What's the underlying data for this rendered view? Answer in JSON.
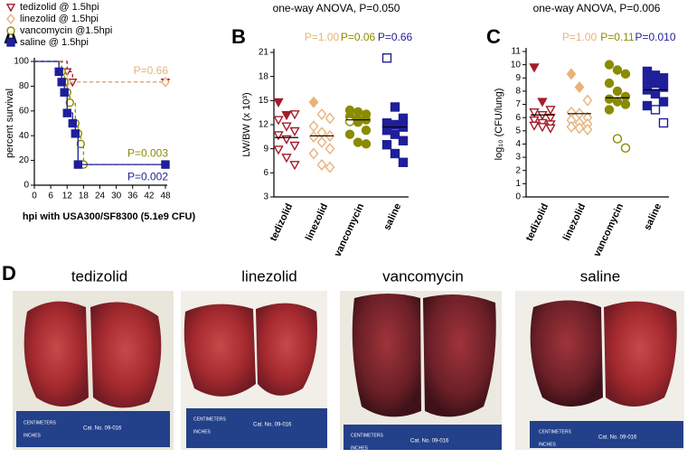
{
  "panels": {
    "a": "A",
    "b": "B",
    "c": "C",
    "d": "D"
  },
  "chart_data": [
    {
      "type": "step",
      "xlabel": "hpi with USA300/SF8300 (5.1e9 CFU)",
      "ylabel": "percent survival",
      "xlim": [
        0,
        48
      ],
      "xticks": [
        0,
        6,
        12,
        18,
        24,
        30,
        36,
        42,
        48
      ],
      "ylim": [
        0,
        100
      ],
      "yticks": [
        0,
        20,
        40,
        60,
        80,
        100
      ],
      "legend": "top-left",
      "series": [
        {
          "name": "tedizolid @ 1.5hpi",
          "color": "#a31c2b",
          "marker": "tri-down",
          "filled": false,
          "dashed": true,
          "x": [
            0,
            12,
            14,
            48
          ],
          "values": [
            100,
            91.7,
            83.3,
            83.3
          ]
        },
        {
          "name": "linezolid @ 1.5hpi",
          "color": "#eab27a",
          "marker": "diamond",
          "filled": false,
          "dashed": true,
          "x": [
            0,
            10,
            12,
            48
          ],
          "values": [
            100,
            91.7,
            83.3,
            83.3
          ],
          "annotation": "P=0.66",
          "annotation_side": "above"
        },
        {
          "name": "vancomycin @1.5hpi",
          "color": "#8b8b00",
          "marker": "circle",
          "filled": false,
          "dashed": true,
          "x": [
            0,
            10,
            11,
            12,
            13,
            15,
            16,
            17,
            18,
            48
          ],
          "values": [
            100,
            91.7,
            83.3,
            75,
            66.7,
            50,
            41.7,
            33.3,
            16.7,
            16.7
          ],
          "annotation": "P=0.003",
          "annotation_side": "above"
        },
        {
          "name": "saline @ 1.5hpi",
          "color": "#1f1f99",
          "marker": "square",
          "filled": true,
          "dashed": false,
          "x": [
            0,
            9,
            10,
            11,
            12,
            14,
            15,
            16,
            48
          ],
          "values": [
            100,
            91.7,
            83.3,
            75,
            58.3,
            50,
            41.7,
            16.7,
            16.7
          ],
          "annotation": "P=0.002",
          "annotation_side": "below"
        }
      ]
    },
    {
      "type": "dot",
      "title": "one-way ANOVA, P=0.050",
      "ylabel": "LW/BW (x 10³)",
      "ylim": [
        3,
        21
      ],
      "yticks": [
        3,
        6,
        9,
        12,
        15,
        18,
        21
      ],
      "categories": [
        "tedizolid",
        "linezolid",
        "vancomycin",
        "saline"
      ],
      "groups": [
        {
          "color": "#a31c2b",
          "marker": "tri-down",
          "mean": 10.4,
          "p_label": null,
          "values": [
            14.8,
            13.2,
            13.3,
            12.6,
            11.8,
            11.2,
            10.7,
            10.2,
            9.4,
            8.9,
            7.9,
            7.0
          ],
          "filled": [
            true,
            true,
            false,
            false,
            false,
            false,
            false,
            false,
            false,
            false,
            false,
            false
          ]
        },
        {
          "color": "#eab27a",
          "marker": "diamond",
          "mean": 10.6,
          "p_label": "P=1.00",
          "values": [
            14.8,
            13.3,
            12.8,
            11.8,
            11.0,
            10.6,
            10.5,
            9.8,
            9.0,
            8.4,
            7.0,
            6.7
          ],
          "filled": [
            true,
            false,
            false,
            false,
            false,
            false,
            false,
            false,
            false,
            false,
            false,
            false
          ]
        },
        {
          "color": "#8b8b00",
          "marker": "circle",
          "mean": 12.6,
          "p_label": "P=0.06",
          "values": [
            13.8,
            13.6,
            13.3,
            13.0,
            12.7,
            12.6,
            12.4,
            12.3,
            11.3,
            10.8,
            9.8,
            9.6
          ],
          "filled": [
            true,
            true,
            true,
            true,
            true,
            true,
            false,
            true,
            true,
            true,
            true,
            true
          ]
        },
        {
          "color": "#1f1f99",
          "marker": "square",
          "mean": 11.7,
          "p_label": "P=0.66",
          "values": [
            20.3,
            14.2,
            12.8,
            12.2,
            12.0,
            11.7,
            11.3,
            10.8,
            10.0,
            9.5,
            8.4,
            7.3
          ],
          "filled": [
            false,
            true,
            true,
            true,
            true,
            true,
            true,
            true,
            true,
            true,
            true,
            true
          ]
        }
      ]
    },
    {
      "type": "dot",
      "title": "one-way ANOVA, P=0.006",
      "ylabel": "log₁₀ (CFU/lung)",
      "ylim": [
        0,
        11
      ],
      "yticks": [
        0,
        1,
        2,
        3,
        4,
        5,
        6,
        7,
        8,
        9,
        10,
        11
      ],
      "categories": [
        "tedizolid",
        "linezolid",
        "vancomycin",
        "saline"
      ],
      "groups": [
        {
          "color": "#a31c2b",
          "marker": "tri-down",
          "mean": 6.2,
          "p_label": null,
          "values": [
            9.8,
            7.2,
            6.6,
            6.4,
            6.2,
            6.0,
            5.8,
            5.6,
            5.5,
            5.4,
            5.3,
            5.2
          ],
          "filled": [
            true,
            true,
            false,
            false,
            false,
            false,
            false,
            false,
            false,
            false,
            false,
            false
          ]
        },
        {
          "color": "#eab27a",
          "marker": "diamond",
          "mean": 6.3,
          "p_label": "P=1.00",
          "values": [
            9.3,
            8.3,
            7.3,
            6.4,
            6.3,
            6.0,
            5.8,
            5.6,
            5.5,
            5.3,
            5.2,
            5.1
          ],
          "filled": [
            true,
            true,
            false,
            false,
            false,
            false,
            false,
            false,
            false,
            false,
            false,
            false
          ]
        },
        {
          "color": "#8b8b00",
          "marker": "circle",
          "mean": 7.5,
          "p_label": "P=0.11",
          "values": [
            10.0,
            9.6,
            9.3,
            8.6,
            8.0,
            7.6,
            7.4,
            7.2,
            7.0,
            6.6,
            4.4,
            3.7
          ],
          "filled": [
            true,
            true,
            true,
            true,
            true,
            true,
            true,
            true,
            true,
            true,
            false,
            false
          ]
        },
        {
          "color": "#1f1f99",
          "marker": "square",
          "mean": 8.1,
          "p_label": "P=0.010",
          "values": [
            9.5,
            9.2,
            9.0,
            8.8,
            8.6,
            8.3,
            8.1,
            7.8,
            7.2,
            6.9,
            6.6,
            5.6
          ],
          "filled": [
            true,
            true,
            true,
            true,
            true,
            true,
            true,
            true,
            true,
            true,
            false,
            false
          ]
        }
      ]
    }
  ],
  "photos": {
    "labels": [
      "tedizolid",
      "linezolid",
      "vancomycin",
      "saline"
    ],
    "ruler": {
      "units": "CENTIMETERS",
      "catalog": "Cat. No. 09-016",
      "inches": "INCHES"
    }
  }
}
